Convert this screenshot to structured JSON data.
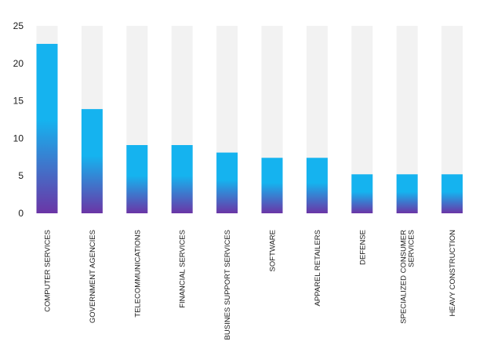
{
  "chart_data": {
    "type": "bar",
    "title": "",
    "xlabel": "",
    "ylabel": "",
    "ylim": [
      0,
      25
    ],
    "yticks": [
      0,
      5,
      10,
      15,
      20,
      25
    ],
    "grid": false,
    "background_track": true,
    "categories": [
      [
        "COMPUTER SERVICES"
      ],
      [
        "GOVERNMENT AGENCIES"
      ],
      [
        "TELECOMMUNICATIONS"
      ],
      [
        "FINANCIAL SERVICES"
      ],
      [
        "BUSINES SUPPORT SERVICES"
      ],
      [
        "SOFTWARE"
      ],
      [
        "APPAREL RETAILERS"
      ],
      [
        "DEFENSE"
      ],
      [
        "SPECIALIZED CONSUMER",
        "SERVICES"
      ],
      [
        "HEAVY CONSTRUCTION"
      ]
    ],
    "values": [
      22.6,
      13.9,
      9.1,
      9.1,
      8.1,
      7.4,
      7.4,
      5.2,
      5.2,
      5.2
    ],
    "colors": {
      "bar_top": "#15b3ef",
      "bar_bottom": "#6b35a6",
      "track": "#f2f2f2"
    }
  }
}
